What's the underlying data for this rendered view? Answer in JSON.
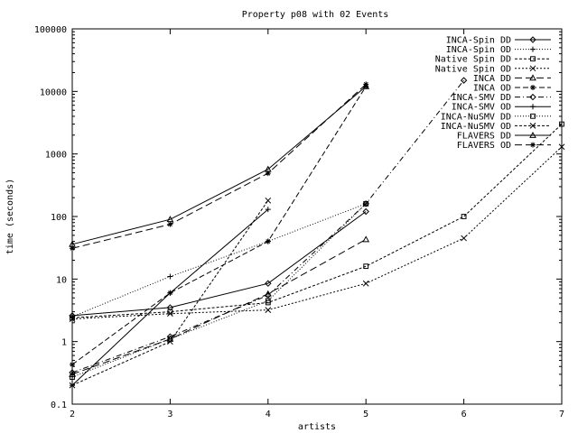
{
  "chart_data": {
    "type": "line",
    "title": "Property p08 with 02 Events",
    "xlabel": "artists",
    "ylabel": "time (seconds)",
    "xlim": [
      2,
      7
    ],
    "ylim": [
      0.1,
      100000
    ],
    "yscale": "log",
    "xticks": [
      "2",
      "3",
      "4",
      "5",
      "6",
      "7"
    ],
    "yticks": [
      "0.1",
      "1",
      "10",
      "100",
      "1000",
      "10000",
      "100000"
    ],
    "grid": false,
    "legend_position": "top-right",
    "series": [
      {
        "name": "INCA-Spin DD",
        "marker": "diamond",
        "dash": "none",
        "x": [
          2,
          3,
          4,
          5
        ],
        "y": [
          2.6,
          3.5,
          8.5,
          120
        ]
      },
      {
        "name": "INCA-Spin OD",
        "marker": "plus",
        "dash": "1,2",
        "x": [
          2,
          3,
          4,
          5
        ],
        "y": [
          2.5,
          11,
          40,
          160
        ]
      },
      {
        "name": "Native Spin DD",
        "marker": "square",
        "dash": "3,2",
        "x": [
          2,
          3,
          4,
          5,
          6,
          7
        ],
        "y": [
          2.4,
          3.0,
          4.2,
          16,
          100,
          3000
        ]
      },
      {
        "name": "Native Spin OD",
        "marker": "cross",
        "dash": "2,2",
        "x": [
          2,
          3,
          4,
          5,
          6,
          7
        ],
        "y": [
          2.3,
          2.8,
          3.2,
          8.5,
          45,
          1300
        ]
      },
      {
        "name": "INCA DD",
        "marker": "triangle",
        "dash": "8,4",
        "x": [
          2,
          3,
          4,
          5
        ],
        "y": [
          0.3,
          1.1,
          5.8,
          43
        ]
      },
      {
        "name": "INCA OD",
        "marker": "star",
        "dash": "6,3",
        "x": [
          2,
          3,
          4,
          5
        ],
        "y": [
          0.43,
          6.0,
          40,
          12000
        ]
      },
      {
        "name": "INCA-SMV DD",
        "marker": "diamond",
        "dash": "6,3,1,3",
        "x": [
          2,
          3,
          4,
          5,
          6
        ],
        "y": [
          0.32,
          1.2,
          5.5,
          160,
          15000
        ]
      },
      {
        "name": "INCA-SMV OD",
        "marker": "plus",
        "dash": "none",
        "x": [
          2,
          3,
          4
        ],
        "y": [
          0.2,
          6.0,
          130
        ]
      },
      {
        "name": "INCA-NuSMV DD",
        "marker": "square",
        "dash": "1,2",
        "x": [
          2,
          3,
          4,
          5
        ],
        "y": [
          0.27,
          1.1,
          4.5,
          160
        ]
      },
      {
        "name": "INCA-NuSMV OD",
        "marker": "cross",
        "dash": "3,2",
        "x": [
          2,
          3,
          4
        ],
        "y": [
          0.2,
          1.0,
          180
        ]
      },
      {
        "name": "FLAVERS DD",
        "marker": "triangle",
        "dash": "none",
        "x": [
          2,
          3,
          4,
          5
        ],
        "y": [
          36,
          90,
          570,
          12000
        ]
      },
      {
        "name": "FLAVERS OD",
        "marker": "star",
        "dash": "8,4",
        "x": [
          2,
          3,
          4,
          5
        ],
        "y": [
          31,
          75,
          490,
          13000
        ]
      }
    ]
  }
}
